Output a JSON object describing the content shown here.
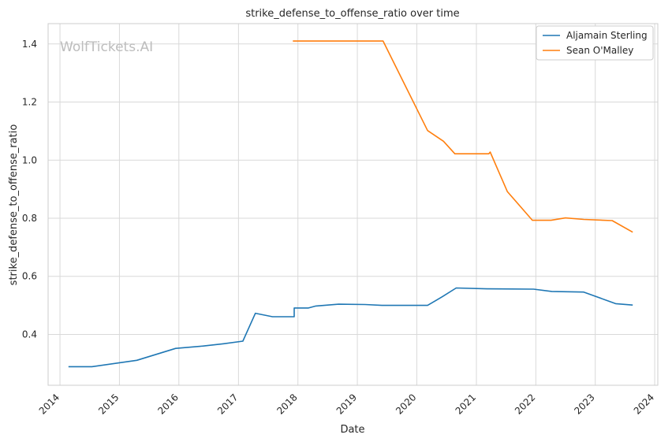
{
  "chart_data": {
    "type": "line",
    "title": "strike_defense_to_offense_ratio over time",
    "xlabel": "Date",
    "ylabel": "strike_defense_to_offense_ratio",
    "xlim": [
      "2013-10-20",
      "2024-01-20"
    ],
    "ylim": [
      0.225,
      1.47
    ],
    "xticks": [
      "2014",
      "2015",
      "2016",
      "2017",
      "2018",
      "2019",
      "2020",
      "2021",
      "2022",
      "2023",
      "2024"
    ],
    "yticks": [
      "0.4",
      "0.6",
      "0.8",
      "1.0",
      "1.2",
      "1.4"
    ],
    "grid": true,
    "legend_position": "top-right",
    "watermark": "WolfTickets.AI",
    "series": [
      {
        "name": "Aljamain Sterling",
        "color": "#1f77b4",
        "points": [
          [
            "2014-02-22",
            0.289
          ],
          [
            "2014-07-16",
            0.289
          ],
          [
            "2015-04-18",
            0.311
          ],
          [
            "2015-12-12",
            0.352
          ],
          [
            "2016-05-29",
            0.36
          ],
          [
            "2016-10-01",
            0.368
          ],
          [
            "2017-01-28",
            0.377
          ],
          [
            "2017-04-15",
            0.473
          ],
          [
            "2017-07-29",
            0.461
          ],
          [
            "2017-12-09",
            0.461
          ],
          [
            "2017-12-09",
            0.491
          ],
          [
            "2018-03-07",
            0.491
          ],
          [
            "2018-04-21",
            0.498
          ],
          [
            "2018-09-08",
            0.504
          ],
          [
            "2019-02-17",
            0.503
          ],
          [
            "2019-06-01",
            0.5
          ],
          [
            "2020-03-07",
            0.5
          ],
          [
            "2020-06-06",
            0.53
          ],
          [
            "2020-08-30",
            0.56
          ],
          [
            "2021-03-06",
            0.557
          ],
          [
            "2021-12-18",
            0.556
          ],
          [
            "2022-04-09",
            0.548
          ],
          [
            "2022-10-22",
            0.546
          ],
          [
            "2023-05-06",
            0.506
          ],
          [
            "2023-08-19",
            0.501
          ]
        ]
      },
      {
        "name": "Sean O'Malley",
        "color": "#ff7f0e",
        "points": [
          [
            "2017-12-01",
            1.41
          ],
          [
            "2019-06-08",
            1.41
          ],
          [
            "2020-03-07",
            1.102
          ],
          [
            "2020-06-13",
            1.065
          ],
          [
            "2020-08-22",
            1.022
          ],
          [
            "2021-03-18",
            1.022
          ],
          [
            "2021-03-27",
            1.028
          ],
          [
            "2021-07-10",
            0.892
          ],
          [
            "2021-12-11",
            0.793
          ],
          [
            "2022-04-04",
            0.793
          ],
          [
            "2022-07-02",
            0.801
          ],
          [
            "2022-10-22",
            0.796
          ],
          [
            "2023-04-15",
            0.792
          ],
          [
            "2023-08-19",
            0.752
          ]
        ]
      }
    ]
  }
}
